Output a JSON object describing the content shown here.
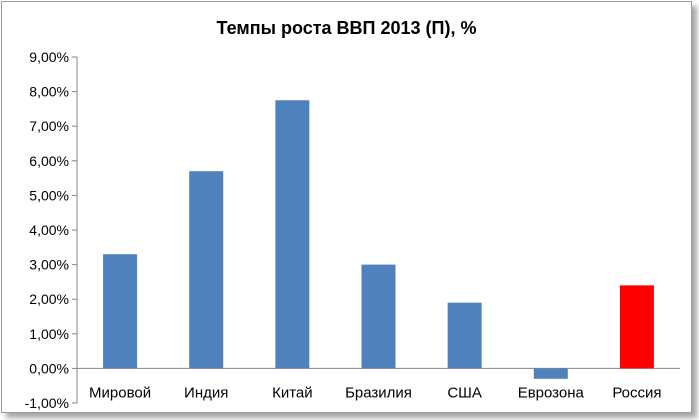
{
  "chart_data": {
    "type": "bar",
    "title": "Темпы роста ВВП 2013 (П), %",
    "xlabel": "",
    "ylabel": "",
    "categories": [
      "Мировой",
      "Индия",
      "Китай",
      "Бразилия",
      "США",
      "Еврозона",
      "Россия"
    ],
    "values": [
      3.3,
      5.7,
      7.75,
      3.0,
      1.9,
      -0.3,
      2.4
    ],
    "ylim": [
      -1,
      9
    ],
    "ytick_labels": [
      "-1,00%",
      "0,00%",
      "1,00%",
      "2,00%",
      "3,00%",
      "4,00%",
      "5,00%",
      "6,00%",
      "7,00%",
      "8,00%",
      "9,00%"
    ],
    "grid": false,
    "legend": "none",
    "colors": {
      "default_bar": "#4f81bd",
      "highlight_bar": "#ff0000",
      "highlight_category": "Россия"
    }
  }
}
